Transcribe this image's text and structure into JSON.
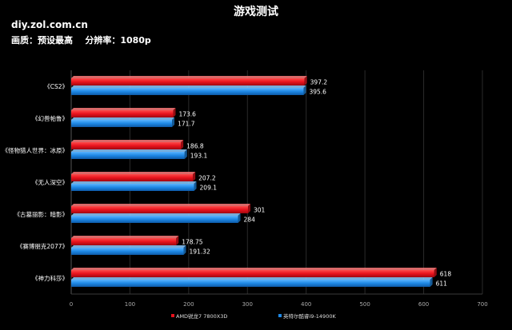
{
  "header": {
    "title": "游戏测试",
    "source": "diy.zol.com.cn",
    "settings": "画质：预设最高    分辨率：1080p"
  },
  "chart_data": {
    "type": "bar",
    "orientation": "horizontal",
    "categories": [
      "《CS2》",
      "《幻兽帕鲁》",
      "《怪物猎人世界：冰原》",
      "《无人深空》",
      "《古墓丽影：暗影》",
      "《赛博朋克2077》",
      "《神力科莎》"
    ],
    "series": [
      {
        "name": "AMD锐龙7 7800X3D",
        "color": "#e8121c",
        "values": [
          397.2,
          173.6,
          186.8,
          207.2,
          301,
          178.75,
          618
        ],
        "labels": [
          "397.2",
          "173.6",
          "186.8",
          "207.2",
          "301",
          "178.75",
          "618"
        ]
      },
      {
        "name": "英特尔酷睿i9-14900K",
        "color": "#1e88e5",
        "values": [
          395.6,
          171.7,
          193.1,
          209.1,
          284,
          191.32,
          611
        ],
        "labels": [
          "395.6",
          "171.7",
          "193.1",
          "209.1",
          "284",
          "191.32",
          "611"
        ]
      }
    ],
    "xlim": [
      0,
      700
    ],
    "xticks": [
      0,
      100,
      200,
      300,
      400,
      500,
      600,
      700
    ],
    "grid": true,
    "legend": "bottom"
  }
}
